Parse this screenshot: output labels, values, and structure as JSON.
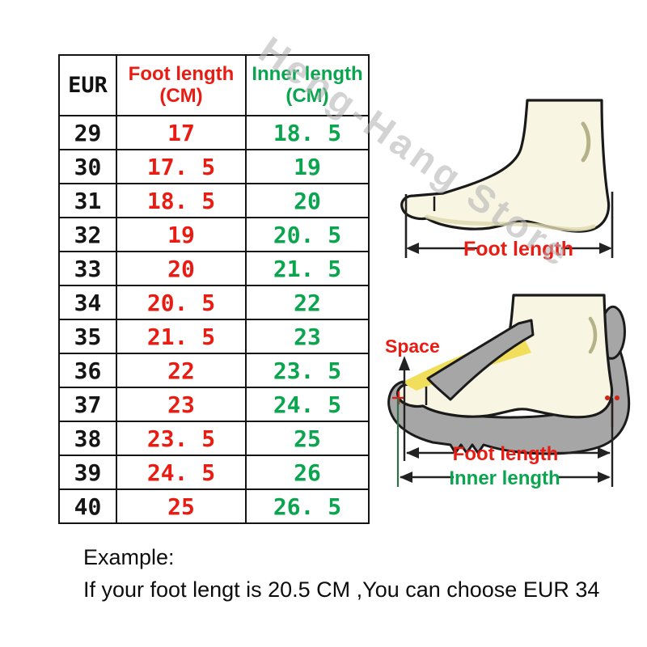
{
  "chart_data": {
    "type": "table",
    "columns": [
      "EUR",
      "Foot length (CM)",
      "Inner length (CM)"
    ],
    "rows": [
      [
        29,
        17,
        18.5
      ],
      [
        30,
        17.5,
        19
      ],
      [
        31,
        18.5,
        20
      ],
      [
        32,
        19,
        20.5
      ],
      [
        33,
        20,
        21.5
      ],
      [
        34,
        20.5,
        22
      ],
      [
        35,
        21.5,
        23
      ],
      [
        36,
        22,
        23.5
      ],
      [
        37,
        23,
        24.5
      ],
      [
        38,
        23.5,
        25
      ],
      [
        39,
        24.5,
        26
      ],
      [
        40,
        25,
        26.5
      ]
    ]
  },
  "table": {
    "header": {
      "col1": "EUR",
      "col2_line1": "Foot length",
      "col2_line2": "(CM)",
      "col3_line1": "Inner length",
      "col3_line2": "(CM)"
    },
    "rows": [
      {
        "eur": "29",
        "foot": "17",
        "inner": "18. 5"
      },
      {
        "eur": "30",
        "foot": "17. 5",
        "inner": "19"
      },
      {
        "eur": "31",
        "foot": "18. 5",
        "inner": "20"
      },
      {
        "eur": "32",
        "foot": "19",
        "inner": "20. 5"
      },
      {
        "eur": "33",
        "foot": "20",
        "inner": "21. 5"
      },
      {
        "eur": "34",
        "foot": "20. 5",
        "inner": "22"
      },
      {
        "eur": "35",
        "foot": "21. 5",
        "inner": "23"
      },
      {
        "eur": "36",
        "foot": "22",
        "inner": "23. 5"
      },
      {
        "eur": "37",
        "foot": "23",
        "inner": "24. 5"
      },
      {
        "eur": "38",
        "foot": "23. 5",
        "inner": "25"
      },
      {
        "eur": "39",
        "foot": "24. 5",
        "inner": "26"
      },
      {
        "eur": "40",
        "foot": "25",
        "inner": "26. 5"
      }
    ]
  },
  "watermark": {
    "text": "Heng-Hang Store"
  },
  "diagrams": {
    "top": {
      "foot_length_label": "Foot length"
    },
    "bottom": {
      "space_label": "Space",
      "foot_length_label": "Foot length",
      "inner_length_label": "Inner length"
    }
  },
  "example": {
    "heading": "Example:",
    "text": "If your foot lengt is 20.5 CM ,You can choose EUR 34"
  },
  "colors": {
    "red": "#e81c13",
    "green": "#0aa54e",
    "foot_fill": "#f8f6e2",
    "shoe_gray": "#a6a6a6",
    "insole_yellow": "#f1de5a",
    "watermark_gray": "#b4b4b4"
  }
}
